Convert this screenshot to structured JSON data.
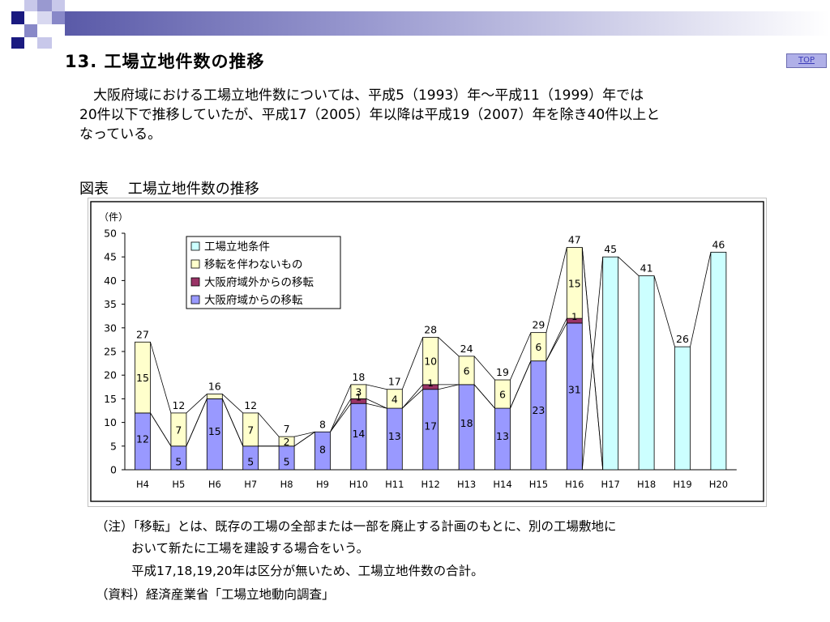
{
  "slide": {
    "title": "13. 工場立地件数の推移",
    "top_link": "TOP",
    "body_lines": [
      "　大阪府域における工場立地件数については、平成5（1993）年～平成11（1999）年では",
      "20件以下で推移していたが、平成17（2005）年以降は平成19（2007）年を除き40件以上と",
      "なっている。"
    ],
    "figure_title": "図表　 工場立地件数の推移",
    "notes": [
      "（注）「移転」とは、既存の工場の全部または一部を廃止する計画のもとに、別の工場敷地に",
      "おいて新たに工場を建設する場合をいう。",
      "平成17,18,19,20年は区分が無いため、工場立地件数の合計。",
      "（資料）経済産業省「工場立地動向調査」"
    ]
  },
  "chart_data": {
    "type": "bar",
    "stacked": true,
    "unit_label": "（件）",
    "categories": [
      "H4",
      "H5",
      "H6",
      "H7",
      "H8",
      "H9",
      "H10",
      "H11",
      "H12",
      "H13",
      "H14",
      "H15",
      "H16",
      "H17",
      "H18",
      "H19",
      "H20"
    ],
    "ylim": [
      0,
      50
    ],
    "yticks": [
      0,
      5,
      10,
      15,
      20,
      25,
      30,
      35,
      40,
      45,
      50
    ],
    "series": [
      {
        "name": "大阪府域からの移転",
        "color": "#9999ff",
        "values": [
          12,
          5,
          15,
          5,
          5,
          8,
          14,
          13,
          17,
          18,
          13,
          23,
          31,
          null,
          null,
          null,
          null
        ]
      },
      {
        "name": "大阪府域外からの移転",
        "color": "#993366",
        "values": [
          0,
          0,
          0,
          0,
          0,
          0,
          1,
          0,
          1,
          0,
          0,
          0,
          1,
          null,
          null,
          null,
          null
        ]
      },
      {
        "name": "移転を伴わないもの",
        "color": "#ffffcc",
        "values": [
          15,
          7,
          1,
          7,
          2,
          0,
          3,
          4,
          10,
          6,
          6,
          6,
          15,
          null,
          null,
          null,
          null
        ]
      },
      {
        "name": "工場立地条件",
        "color": "#ccffff",
        "values": [
          null,
          null,
          null,
          null,
          null,
          null,
          null,
          null,
          null,
          null,
          null,
          null,
          null,
          45,
          41,
          26,
          46
        ]
      }
    ],
    "totals": [
      27,
      12,
      16,
      12,
      7,
      8,
      18,
      17,
      28,
      24,
      19,
      29,
      47,
      45,
      41,
      26,
      46
    ],
    "segment_labels": {
      "bottom": [
        "12",
        "5",
        "15",
        "5",
        "5",
        "8",
        "14",
        "13",
        "17",
        "18",
        "13",
        "23",
        "31",
        "",
        "",
        "",
        ""
      ],
      "middle": [
        "",
        "",
        "",
        "",
        "",
        "",
        "1",
        "",
        "1",
        "",
        "",
        "",
        "1",
        "",
        "",
        "",
        ""
      ],
      "top": [
        "15",
        "7",
        "",
        "7",
        "2",
        "",
        "3",
        "4",
        "10",
        "6",
        "6",
        "6",
        "15",
        "",
        "",
        "",
        ""
      ]
    },
    "legend": [
      "工場立地条件",
      "移転を伴わないもの",
      "大阪府域外からの移転",
      "大阪府域からの移転"
    ],
    "legend_position": "top-left"
  }
}
